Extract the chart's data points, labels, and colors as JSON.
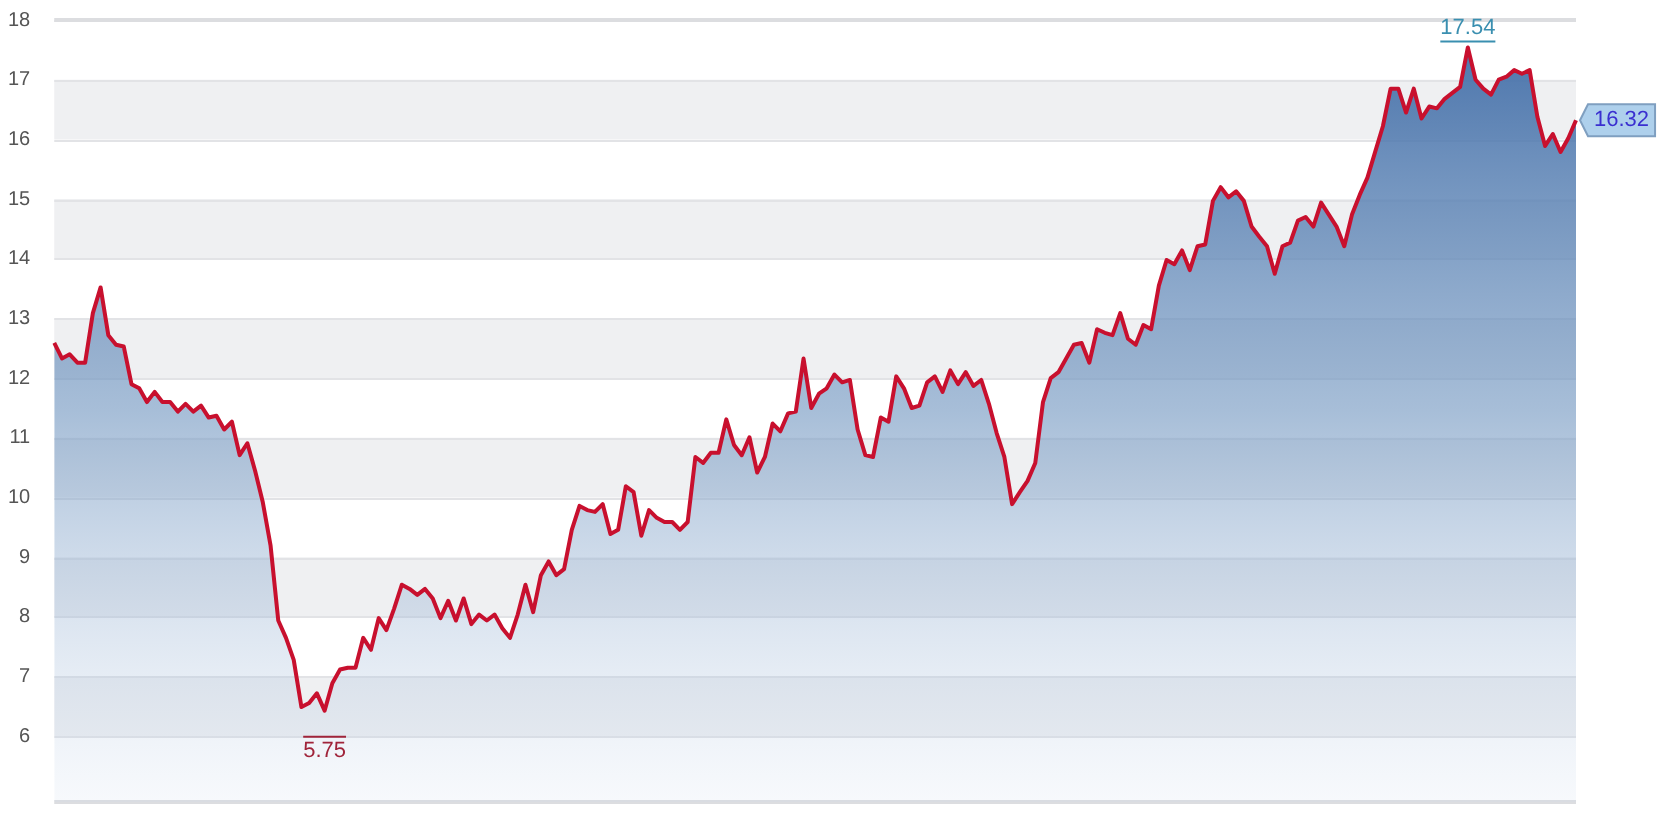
{
  "chart_data": {
    "type": "area",
    "categories": [
      null,
      null,
      null,
      null,
      null,
      null,
      null,
      null,
      null,
      null,
      null,
      null,
      null,
      null,
      null,
      null,
      null,
      null,
      null,
      null,
      null,
      null,
      null,
      null,
      null,
      null,
      null,
      null,
      null,
      null,
      null,
      null,
      null,
      null,
      null,
      null,
      null,
      null,
      null,
      null,
      null,
      null,
      null,
      null,
      null,
      null,
      null,
      null,
      null,
      null,
      null,
      null,
      null,
      null,
      null,
      null,
      null,
      null,
      null,
      null,
      null,
      null,
      null,
      null,
      null,
      null,
      null,
      null,
      null,
      null,
      null,
      null,
      null,
      null,
      null,
      null,
      null,
      null,
      null,
      null,
      null,
      null,
      null,
      null,
      null,
      null,
      null,
      null,
      null,
      null,
      null,
      null,
      null,
      null,
      null,
      null,
      null,
      null,
      null,
      null,
      null,
      null,
      null,
      null,
      null,
      null,
      null,
      null,
      null,
      null,
      null,
      null,
      null,
      null,
      null,
      null,
      null,
      null,
      null,
      null,
      null,
      null,
      null,
      null,
      null,
      null,
      null,
      null,
      null,
      null,
      null,
      null,
      null,
      null,
      null,
      null,
      null,
      null,
      null,
      null,
      null,
      null,
      null,
      null,
      null,
      null,
      null,
      null,
      null,
      null,
      null,
      null,
      null,
      null,
      null,
      null,
      null,
      null,
      null,
      null,
      null,
      null,
      null,
      null,
      null,
      null,
      null,
      null,
      null,
      null,
      null,
      null,
      null,
      null,
      null,
      null,
      null,
      null,
      null,
      null,
      null,
      null,
      null,
      null,
      null,
      null,
      null,
      null,
      null,
      null,
      null,
      null,
      null,
      null,
      null,
      null,
      null,
      null
    ],
    "series": [
      {
        "color": "#c8102e",
        "values": [
          12.59,
          12.33,
          12.4,
          12.26,
          12.26,
          13.09,
          13.52,
          12.72,
          12.56,
          12.53,
          11.9,
          11.83,
          11.6,
          11.77,
          11.6,
          11.6,
          11.44,
          11.57,
          11.44,
          11.54,
          11.34,
          11.37,
          11.14,
          11.27,
          10.71,
          10.91,
          10.45,
          9.92,
          9.2,
          7.94,
          7.65,
          7.28,
          6.49,
          6.56,
          6.72,
          6.43,
          6.89,
          7.12,
          7.15,
          7.15,
          7.65,
          7.45,
          7.98,
          7.78,
          8.14,
          8.54,
          8.47,
          8.37,
          8.47,
          8.31,
          7.98,
          8.27,
          7.94,
          8.31,
          7.88,
          8.04,
          7.94,
          8.04,
          7.81,
          7.65,
          8.04,
          8.54,
          8.08,
          8.7,
          8.93,
          8.7,
          8.8,
          9.46,
          9.86,
          9.79,
          9.76,
          9.89,
          9.39,
          9.46,
          10.19,
          10.09,
          9.36,
          9.79,
          9.66,
          9.59,
          9.59,
          9.46,
          9.59,
          10.68,
          10.58,
          10.75,
          10.75,
          11.31,
          10.88,
          10.71,
          11.01,
          10.42,
          10.68,
          11.24,
          11.11,
          11.41,
          11.44,
          12.33,
          11.5,
          11.74,
          11.83,
          12.06,
          11.93,
          11.97,
          11.14,
          10.71,
          10.68,
          11.34,
          11.27,
          12.03,
          11.83,
          11.5,
          11.54,
          11.93,
          12.03,
          11.77,
          12.13,
          11.9,
          12.1,
          11.87,
          11.97,
          11.57,
          11.08,
          10.68,
          9.89,
          10.09,
          10.28,
          10.58,
          11.6,
          12.0,
          12.1,
          12.33,
          12.56,
          12.59,
          12.26,
          12.82,
          12.76,
          12.72,
          13.09,
          12.66,
          12.56,
          12.89,
          12.82,
          13.55,
          13.98,
          13.91,
          14.14,
          13.81,
          14.21,
          14.24,
          14.97,
          15.2,
          15.03,
          15.13,
          14.97,
          14.54,
          14.37,
          14.21,
          13.75,
          14.21,
          14.27,
          14.64,
          14.7,
          14.54,
          14.94,
          14.74,
          14.54,
          14.21,
          14.74,
          15.07,
          15.36,
          15.79,
          16.22,
          16.85,
          16.85,
          16.45,
          16.85,
          16.35,
          16.55,
          16.52,
          16.68,
          16.78,
          16.88,
          17.54,
          17.0,
          16.85,
          16.75,
          17.0,
          17.05,
          17.16,
          17.1,
          17.16,
          16.38,
          15.89,
          16.09,
          15.79,
          16.02,
          16.32
        ]
      }
    ],
    "ylim": [
      4.9,
      18
    ],
    "yticks": [
      6,
      7,
      8,
      9,
      10,
      11,
      12,
      13,
      14,
      15,
      16,
      17,
      18
    ],
    "grid": "y",
    "legend": false,
    "tick_labels": "y",
    "annotations": [
      "5.75",
      "17.54",
      "16.32"
    ]
  }
}
